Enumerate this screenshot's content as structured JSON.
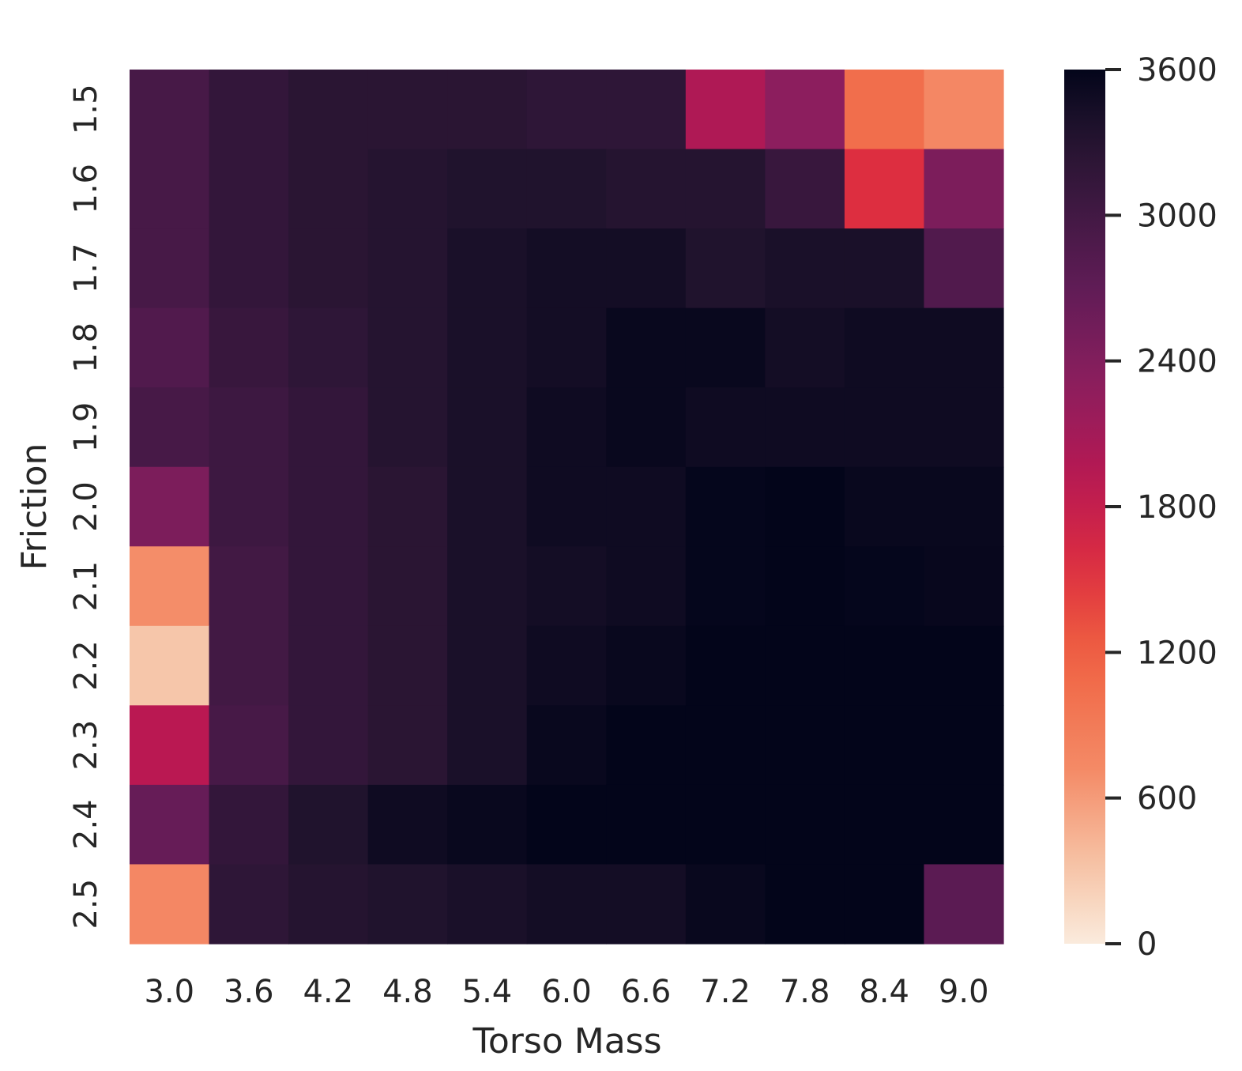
{
  "chart_data": {
    "type": "heatmap",
    "title": "",
    "xlabel": "Torso Mass",
    "ylabel": "Friction",
    "x_categories": [
      "3.0",
      "3.6",
      "4.2",
      "4.8",
      "5.4",
      "6.0",
      "6.6",
      "7.2",
      "7.8",
      "8.4",
      "9.0"
    ],
    "y_categories": [
      "1.5",
      "1.6",
      "1.7",
      "1.8",
      "1.9",
      "2.0",
      "2.1",
      "2.2",
      "2.3",
      "2.4",
      "2.5"
    ],
    "values": [
      [
        2950,
        3150,
        3250,
        3250,
        3250,
        3200,
        3200,
        2000,
        2300,
        1050,
        750
      ],
      [
        2950,
        3150,
        3250,
        3300,
        3350,
        3350,
        3300,
        3300,
        3100,
        1550,
        2450
      ],
      [
        2950,
        3150,
        3250,
        3300,
        3400,
        3450,
        3450,
        3350,
        3400,
        3400,
        2850
      ],
      [
        2850,
        3100,
        3200,
        3300,
        3400,
        3450,
        3550,
        3550,
        3450,
        3500,
        3500
      ],
      [
        2950,
        3050,
        3150,
        3300,
        3400,
        3500,
        3550,
        3500,
        3500,
        3500,
        3500
      ],
      [
        2450,
        3050,
        3150,
        3250,
        3400,
        3500,
        3500,
        3580,
        3600,
        3550,
        3550
      ],
      [
        700,
        3000,
        3150,
        3250,
        3400,
        3450,
        3500,
        3580,
        3600,
        3580,
        3560
      ],
      [
        300,
        3000,
        3150,
        3250,
        3400,
        3500,
        3550,
        3600,
        3600,
        3600,
        3600
      ],
      [
        1900,
        2950,
        3150,
        3250,
        3400,
        3550,
        3600,
        3600,
        3600,
        3600,
        3600
      ],
      [
        2650,
        3150,
        3350,
        3500,
        3550,
        3600,
        3600,
        3600,
        3600,
        3600,
        3600
      ],
      [
        750,
        3200,
        3300,
        3350,
        3400,
        3450,
        3450,
        3550,
        3600,
        3600,
        2750
      ]
    ],
    "colorbar": {
      "min": 0,
      "max": 3600,
      "ticks": [
        0,
        600,
        1200,
        1800,
        2400,
        3000,
        3600
      ],
      "colormap": "rocket_r"
    },
    "grid": false
  }
}
